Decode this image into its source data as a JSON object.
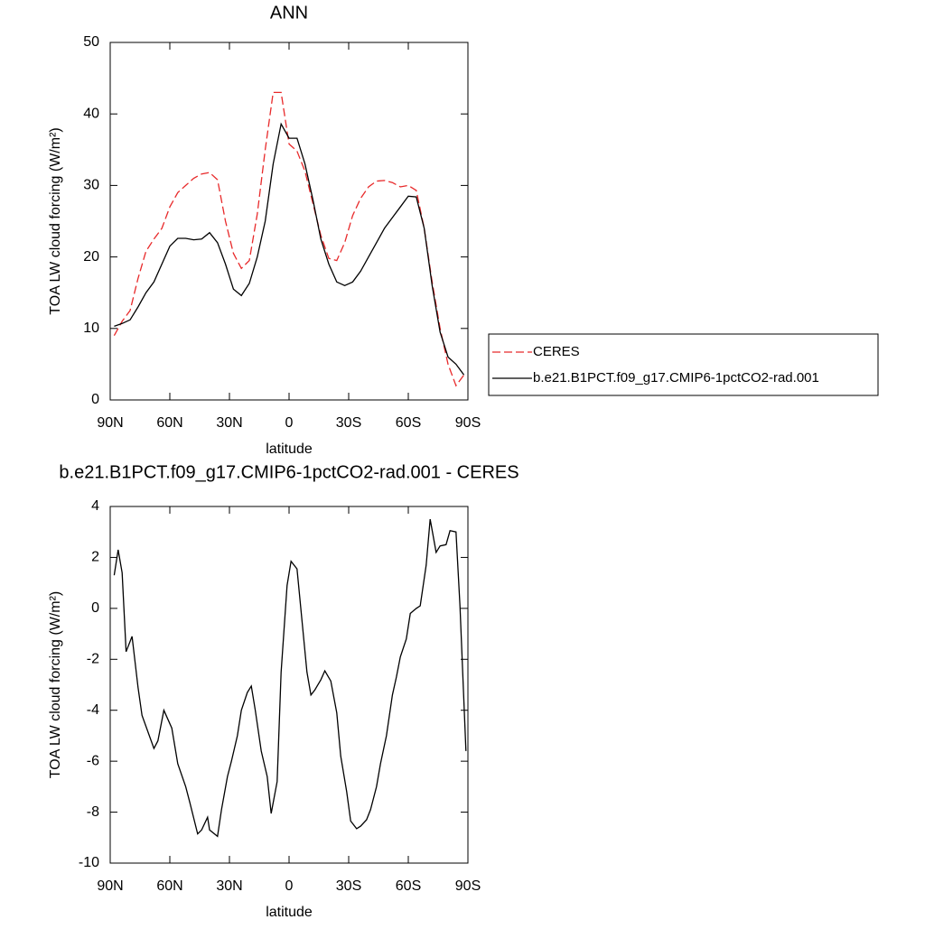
{
  "chart_data": [
    {
      "type": "line",
      "title": "ANN",
      "y_label": "TOA LW cloud forcing (W/m²)",
      "x_label": "latitude",
      "xlim": [
        90,
        -90
      ],
      "xticks": [
        {
          "value": 90,
          "label": "90N"
        },
        {
          "value": 60,
          "label": "60N"
        },
        {
          "value": 30,
          "label": "30N"
        },
        0,
        {
          "value": -30,
          "label": "30S"
        },
        {
          "value": -60,
          "label": "60S"
        },
        {
          "value": -90,
          "label": "90S"
        }
      ],
      "ylim": [
        0,
        50
      ],
      "yticks": [
        0,
        10,
        20,
        30,
        40,
        50
      ],
      "x": [
        88,
        84,
        80,
        76,
        72,
        68,
        64,
        60,
        56,
        52,
        48,
        44,
        40,
        36,
        32,
        28,
        24,
        20,
        16,
        12,
        8,
        4,
        0,
        -4,
        -8,
        -12,
        -16,
        -20,
        -24,
        -28,
        -32,
        -36,
        -40,
        -44,
        -48,
        -52,
        -56,
        -60,
        -64,
        -68,
        -72,
        -76,
        -80,
        -84,
        -88
      ],
      "legend": "right",
      "series": [
        {
          "name": "CERES",
          "color": "#e8292a",
          "dash": "dashed",
          "values": [
            9,
            11,
            12.5,
            17,
            20.8,
            22.5,
            24,
            27,
            29,
            30,
            31,
            31.6,
            31.8,
            30.8,
            25,
            20.5,
            18.4,
            19.5,
            26,
            35,
            43,
            43,
            35.8,
            34.8,
            32,
            27.5,
            23,
            19.8,
            19.5,
            22,
            25.8,
            28.2,
            29.8,
            30.6,
            30.7,
            30.4,
            29.8,
            30,
            29.3,
            24,
            16.5,
            10,
            5,
            2,
            3.5
          ]
        },
        {
          "name": "b.e21.B1PCT.f09_g17.CMIP6-1pctCO2-rad.001",
          "color": "#000000",
          "dash": "solid",
          "values": [
            10.3,
            10.7,
            11.2,
            13,
            15,
            16.5,
            19,
            21.5,
            22.6,
            22.6,
            22.4,
            22.5,
            23.4,
            22,
            19,
            15.5,
            14.6,
            16.3,
            20,
            25,
            33,
            38.6,
            36.6,
            36.6,
            33,
            28,
            22.5,
            19,
            16.5,
            16,
            16.5,
            18,
            20,
            22,
            24,
            25.5,
            27,
            28.5,
            28.4,
            24,
            16,
            9.5,
            6,
            5,
            3.5
          ]
        }
      ]
    },
    {
      "type": "line",
      "title": "b.e21.B1PCT.f09_g17.CMIP6-1pctCO2-rad.001 - CERES",
      "y_label": "TOA LW cloud forcing (W/m²)",
      "x_label": "latitude",
      "xlim": [
        90,
        -90
      ],
      "xticks": [
        {
          "value": 90,
          "label": "90N"
        },
        {
          "value": 60,
          "label": "60N"
        },
        {
          "value": 30,
          "label": "30N"
        },
        0,
        {
          "value": -30,
          "label": "30S"
        },
        {
          "value": -60,
          "label": "60S"
        },
        {
          "value": -90,
          "label": "90S"
        }
      ],
      "ylim": [
        -10,
        4
      ],
      "yticks": [
        -10,
        -8,
        -6,
        -4,
        -2,
        0,
        2,
        4
      ],
      "x": [
        88,
        86,
        84,
        82,
        79,
        76,
        74,
        68,
        66,
        63,
        59,
        56,
        52,
        50,
        46,
        44,
        41,
        40,
        36,
        34,
        31,
        29,
        26,
        24,
        21,
        19,
        17,
        14,
        11,
        9,
        6,
        4,
        1,
        -1,
        -4,
        -9,
        -11,
        -13,
        -16,
        -18,
        -21,
        -24,
        -26,
        -29,
        -31,
        -34,
        -36,
        -39,
        -41,
        -44,
        -46,
        -49,
        -52,
        -54,
        -56,
        -59,
        -61,
        -64,
        -66,
        -69,
        -71,
        -74,
        -76,
        -79,
        -81,
        -84,
        -86,
        -89
      ],
      "series": [
        {
          "color": "#000000",
          "dash": "solid",
          "values": [
            1.3,
            2.3,
            1.4,
            -1.7,
            -1.1,
            -3.1,
            -4.2,
            -5.5,
            -5.2,
            -4.0,
            -4.7,
            -6.1,
            -7.0,
            -7.6,
            -8.85,
            -8.7,
            -8.2,
            -8.7,
            -8.95,
            -7.9,
            -6.6,
            -6.0,
            -5.0,
            -4.0,
            -3.3,
            -3.05,
            -4.0,
            -5.6,
            -6.6,
            -8.05,
            -6.8,
            -2.5,
            0.9,
            1.85,
            1.55,
            -2.5,
            -3.4,
            -3.2,
            -2.8,
            -2.45,
            -2.85,
            -4.1,
            -5.8,
            -7.2,
            -8.35,
            -8.65,
            -8.55,
            -8.3,
            -7.9,
            -7.0,
            -6.1,
            -5.0,
            -3.4,
            -2.7,
            -1.9,
            -1.2,
            -0.2,
            0.0,
            0.1,
            1.7,
            3.5,
            2.2,
            2.45,
            2.5,
            3.05,
            3.0,
            0.1,
            -5.6
          ]
        }
      ]
    }
  ]
}
